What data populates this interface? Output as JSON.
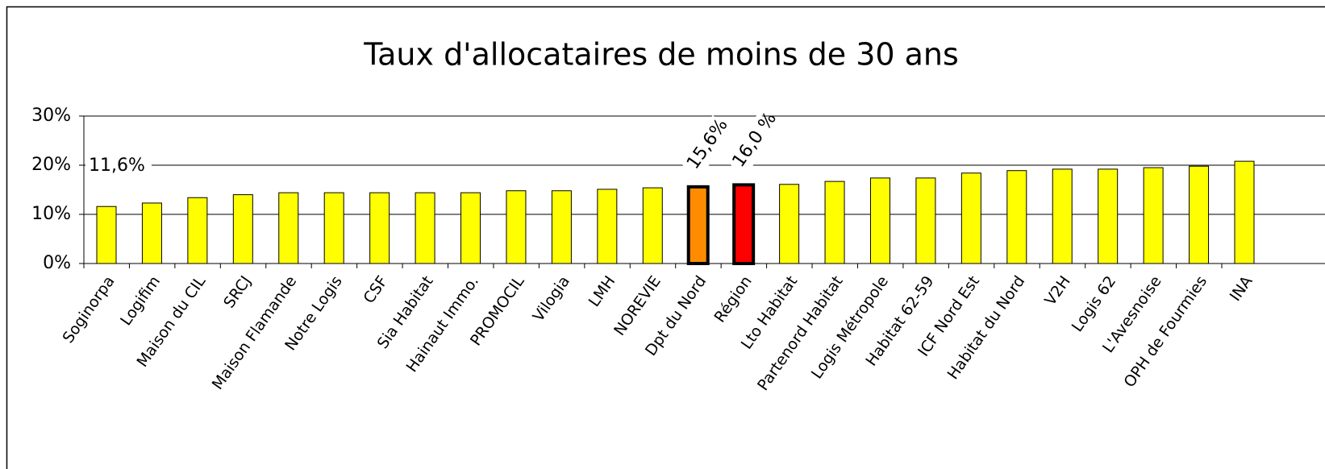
{
  "chart_data": {
    "type": "bar",
    "title": "Taux d'allocataires de moins de 30 ans",
    "categories": [
      "Soginorpa",
      "Logifim",
      "Maison du CIL",
      "SRCJ",
      "Maison Flamande",
      "Notre Logis",
      "CSF",
      "Sia Habitat",
      "Hainaut Immo.",
      "PROMOCIL",
      "Vilogia",
      "LMH",
      "NOREVIE",
      "Dpt du Nord",
      "Région",
      "Lto Habitat",
      "Partenord Habitat",
      "Logis Métropole",
      "Habitat 62-59",
      "ICF Nord Est",
      "Habitat du Nord",
      "V2H",
      "Logis 62",
      "L'Avesnoise",
      "OPH de Fourmies",
      "INA"
    ],
    "values": [
      11.6,
      12.3,
      13.4,
      14.0,
      14.4,
      14.4,
      14.4,
      14.4,
      14.4,
      14.8,
      14.8,
      15.1,
      15.4,
      15.6,
      16.0,
      16.1,
      16.7,
      17.4,
      17.4,
      18.4,
      18.9,
      19.2,
      19.2,
      19.5,
      19.8,
      20.8
    ],
    "value_labels": [
      "11,6%",
      null,
      null,
      null,
      null,
      null,
      null,
      null,
      null,
      null,
      null,
      null,
      null,
      "15,6%",
      "16,0 %",
      null,
      null,
      null,
      null,
      null,
      null,
      null,
      null,
      null,
      null,
      null
    ],
    "colors": [
      "#ffff00",
      "#ffff00",
      "#ffff00",
      "#ffff00",
      "#ffff00",
      "#ffff00",
      "#ffff00",
      "#ffff00",
      "#ffff00",
      "#ffff00",
      "#ffff00",
      "#ffff00",
      "#ffff00",
      "#ff8c00",
      "#ff0000",
      "#ffff00",
      "#ffff00",
      "#ffff00",
      "#ffff00",
      "#ffff00",
      "#ffff00",
      "#ffff00",
      "#ffff00",
      "#ffff00",
      "#ffff00",
      "#ffff00"
    ],
    "ylim": [
      0,
      30
    ],
    "yticks": [
      {
        "value": 0,
        "label": "0%"
      },
      {
        "value": 10,
        "label": "10%"
      },
      {
        "value": 20,
        "label": "20%"
      },
      {
        "value": 30,
        "label": "30%"
      }
    ],
    "grid": true
  }
}
